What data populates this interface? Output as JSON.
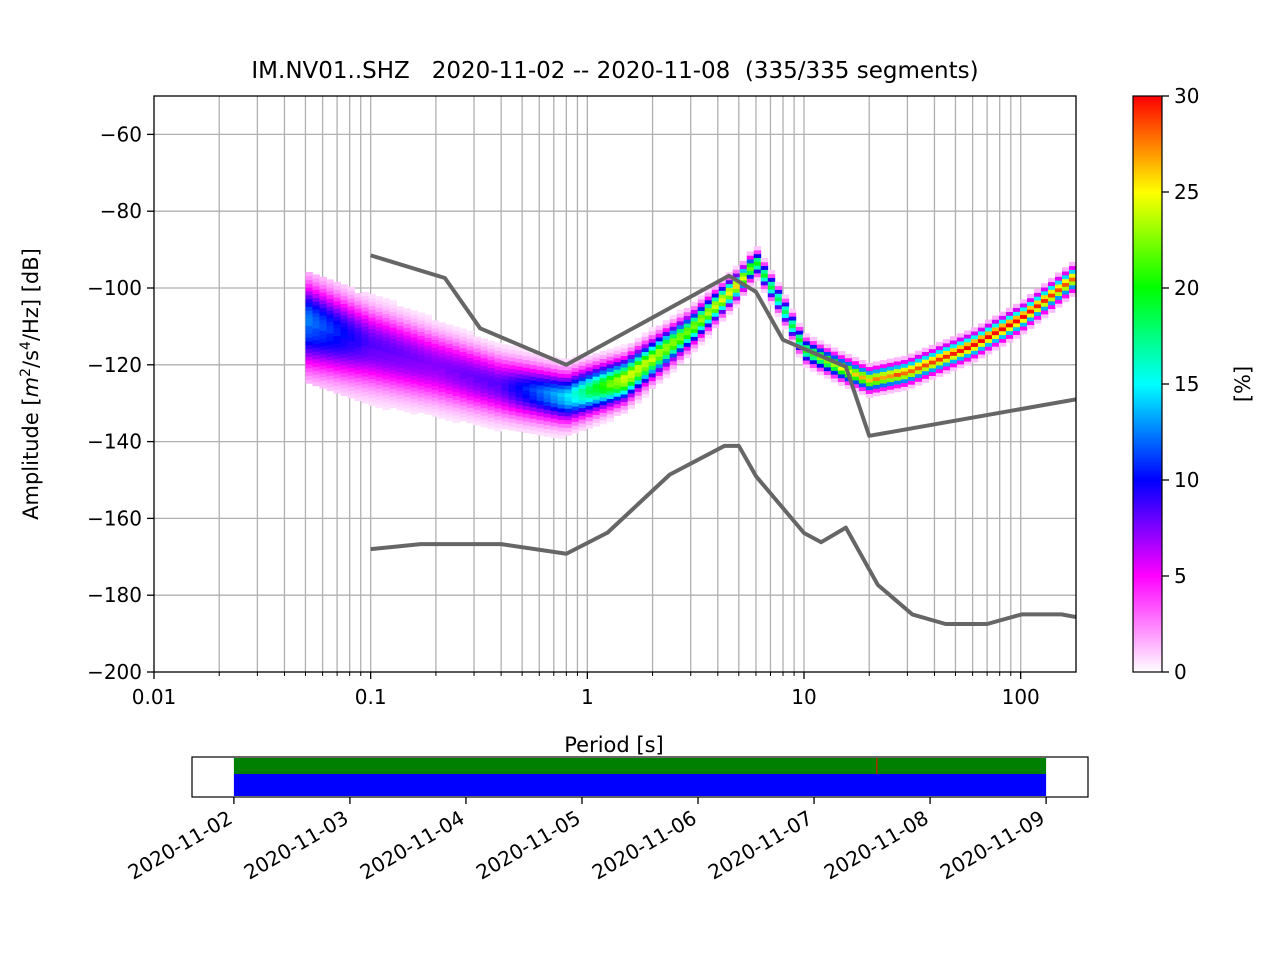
{
  "chart_data": [
    {
      "type": "heatmap",
      "title": "IM.NV01..SHZ   2020-11-02 -- 2020-11-08  (335/335 segments)",
      "xlabel": "Period [s]",
      "ylabel_parts": {
        "prefix": "Amplitude [",
        "m": "m",
        "exp_m": "2",
        "mid": "/s",
        "exp_s": "4",
        "suffix": "/Hz] [dB]"
      },
      "x_scale": "log",
      "xlim": [
        0.01,
        180
      ],
      "ylim": [
        -200,
        -50
      ],
      "grid": true,
      "x_ticks": [
        {
          "v": 0.01,
          "label": "0.01"
        },
        {
          "v": 0.1,
          "label": "0.1"
        },
        {
          "v": 1,
          "label": "1"
        },
        {
          "v": 10,
          "label": "10"
        },
        {
          "v": 100,
          "label": "100"
        }
      ],
      "y_ticks": [
        {
          "v": -60,
          "label": "−60"
        },
        {
          "v": -80,
          "label": "−80"
        },
        {
          "v": -100,
          "label": "−100"
        },
        {
          "v": -120,
          "label": "−120"
        },
        {
          "v": -140,
          "label": "−140"
        },
        {
          "v": -160,
          "label": "−160"
        },
        {
          "v": -180,
          "label": "−180"
        },
        {
          "v": -200,
          "label": "−200"
        }
      ],
      "colorbar": {
        "label": "[%]",
        "range": [
          0,
          30
        ],
        "ticks": [
          {
            "v": 0,
            "label": "0"
          },
          {
            "v": 5,
            "label": "5"
          },
          {
            "v": 10,
            "label": "10"
          },
          {
            "v": 15,
            "label": "15"
          },
          {
            "v": 20,
            "label": "20"
          },
          {
            "v": 25,
            "label": "25"
          },
          {
            "v": 30,
            "label": "30"
          }
        ],
        "colors": [
          "#ffffff",
          "#ff00ff",
          "#0000ff",
          "#00ffff",
          "#00ff00",
          "#ffff00",
          "#ff0000"
        ]
      },
      "density_ridge": {
        "period": [
          0.05,
          0.1,
          0.2,
          0.4,
          0.8,
          1.5,
          3,
          5,
          6,
          8,
          10,
          15,
          20,
          30,
          60,
          100,
          180
        ],
        "amplitude_db": [
          -110,
          -116,
          -121,
          -126,
          -129,
          -124,
          -111,
          -99,
          -93,
          -105,
          -116,
          -121,
          -124,
          -122,
          -115,
          -108,
          -97
        ],
        "peak_percent": [
          12,
          8,
          7,
          8,
          14,
          24,
          22,
          26,
          20,
          18,
          20,
          24,
          26,
          28,
          30,
          30,
          28
        ]
      },
      "series": [
        {
          "period": [
            0.1,
            0.22,
            0.32,
            0.8,
            4.5,
            6,
            8,
            15.6,
            20,
            180
          ],
          "amplitude_db": [
            -91.5,
            -97.4,
            -110.5,
            -120,
            -96.8,
            -101,
            -113.5,
            -120.5,
            -138.5,
            -129
          ]
        },
        {
          "period": [
            0.1,
            0.17,
            0.4,
            0.8,
            1.24,
            2.4,
            4.3,
            5,
            6,
            10,
            12,
            15.6,
            21.9,
            31.6,
            45,
            70,
            101,
            154,
            180
          ],
          "amplitude_db": [
            -168,
            -166.7,
            -166.7,
            -169.2,
            -163.7,
            -148.6,
            -141.1,
            -141.1,
            -149,
            -163.8,
            -166.2,
            -162.4,
            -177.3,
            -185,
            -187.5,
            -187.5,
            -185,
            -185,
            -185.7
          ]
        }
      ],
      "series_color": "#666666"
    },
    {
      "type": "bar",
      "x": [
        "2020-11-02",
        "2020-11-03",
        "2020-11-04",
        "2020-11-05",
        "2020-11-06",
        "2020-11-07",
        "2020-11-08",
        "2020-11-09"
      ],
      "xlim": [
        "2020-11-01T15:20",
        "2020-11-09T08:40"
      ],
      "coverage": [
        {
          "start": "2020-11-02",
          "end": "2020-11-09",
          "color": "#008000",
          "band": "upper"
        },
        {
          "start": "2020-11-02",
          "end": "2020-11-09",
          "color": "#0000ff",
          "band": "lower"
        }
      ],
      "gap_markers": [
        {
          "at": "2020-11-07T13:00",
          "color": "#ff0000"
        }
      ]
    }
  ]
}
